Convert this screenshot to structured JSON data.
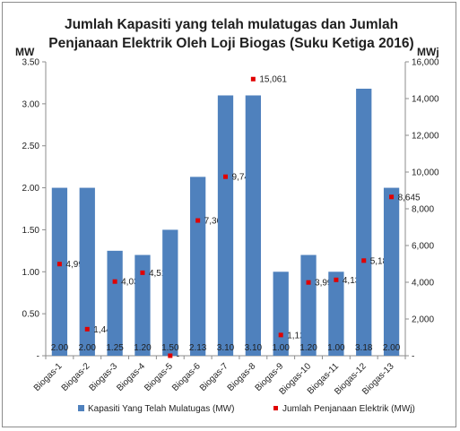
{
  "chart_data": {
    "type": "bar",
    "title_line1": "Jumlah Kapasiti yang telah mulatugas dan Jumlah",
    "title_line2": "Penjanaan Elektrik Oleh Loji Biogas (Suku Ketiga 2016)",
    "y_left_unit": "MW",
    "y_right_unit": "MWj",
    "y_left_range": [
      0,
      3.5
    ],
    "y_right_range": [
      0,
      16000
    ],
    "y_left_ticks": [
      "-",
      "0.50",
      "1.00",
      "1.50",
      "2.00",
      "2.50",
      "3.00",
      "3.50"
    ],
    "y_right_ticks": [
      "-",
      "2,000",
      "4,000",
      "6,000",
      "8,000",
      "10,000",
      "12,000",
      "14,000",
      "16,000"
    ],
    "categories": [
      "Biogas-1",
      "Biogas-2",
      "Biogas-3",
      "Biogas-4",
      "Biogas-5",
      "Biogas-6",
      "Biogas-7",
      "Biogas-8",
      "Biogas-9",
      "Biogas-10",
      "Biogas-11",
      "Biogas-12",
      "Biogas-13"
    ],
    "series": [
      {
        "name": "Kapasiti Yang Telah Mulatugas (MW)",
        "type": "bar",
        "axis": "left",
        "color": "#4f81bd",
        "values": [
          2.0,
          2.0,
          1.25,
          1.2,
          1.5,
          2.13,
          3.1,
          3.1,
          1.0,
          1.2,
          1.0,
          3.18,
          2.0
        ],
        "labels": [
          "2.00",
          "2.00",
          "1.25",
          "1.20",
          "1.50",
          "2.13",
          "3.10",
          "3.10",
          "1.00",
          "1.20",
          "1.00",
          "3.18",
          "2.00"
        ]
      },
      {
        "name": "Jumlah Penjanaan Elektrik (MWj)",
        "type": "scatter",
        "axis": "right",
        "color": "#e00000",
        "values": [
          4990,
          1446,
          4039,
          4519,
          0,
          7363,
          9746,
          15061,
          1128,
          3990,
          4132,
          5180,
          8645
        ],
        "labels": [
          "4,990",
          "1,446",
          "4,039",
          "4,519",
          "-",
          "7,363",
          "9,746",
          "15,061",
          "1,128",
          "3,990",
          "4,132",
          "5,180",
          "8,645"
        ]
      }
    ],
    "grid": false,
    "legend_position": "bottom"
  }
}
